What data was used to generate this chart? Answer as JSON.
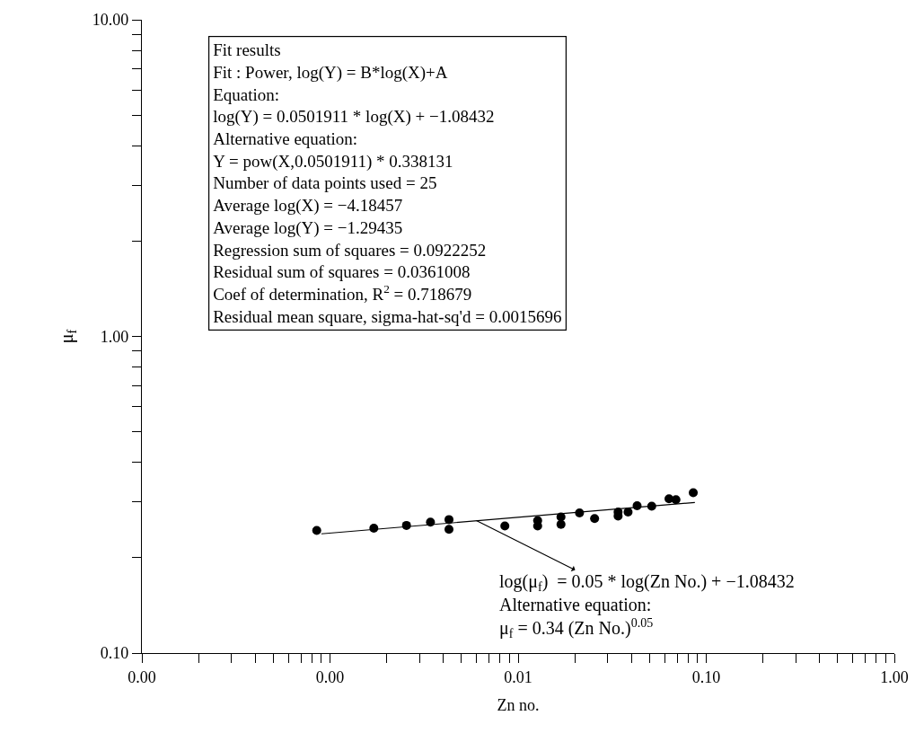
{
  "chart_data": {
    "type": "scatter",
    "xlabel": "Zn no.",
    "ylabel": "μ$_{f}$",
    "log": "xy",
    "xlim": [
      0.0001,
      1
    ],
    "ylim": [
      0.1,
      10
    ],
    "xticks": [
      {
        "value": 0.0001,
        "label": "0.00"
      },
      {
        "value": 0.0002,
        "label": null
      },
      {
        "value": 0.0003,
        "label": null
      },
      {
        "value": 0.0004,
        "label": null
      },
      {
        "value": 0.0005,
        "label": null
      },
      {
        "value": 0.0006,
        "label": null
      },
      {
        "value": 0.0007,
        "label": null
      },
      {
        "value": 0.0008,
        "label": null
      },
      {
        "value": 0.0009,
        "label": null
      },
      {
        "value": 0.001,
        "label": "0.00"
      },
      {
        "value": 0.002,
        "label": null
      },
      {
        "value": 0.003,
        "label": null
      },
      {
        "value": 0.004,
        "label": null
      },
      {
        "value": 0.005,
        "label": null
      },
      {
        "value": 0.006,
        "label": null
      },
      {
        "value": 0.007,
        "label": null
      },
      {
        "value": 0.008,
        "label": null
      },
      {
        "value": 0.009,
        "label": null
      },
      {
        "value": 0.01,
        "label": "0.01"
      },
      {
        "value": 0.02,
        "label": null
      },
      {
        "value": 0.03,
        "label": null
      },
      {
        "value": 0.04,
        "label": null
      },
      {
        "value": 0.05,
        "label": null
      },
      {
        "value": 0.06,
        "label": null
      },
      {
        "value": 0.07,
        "label": null
      },
      {
        "value": 0.08,
        "label": null
      },
      {
        "value": 0.09,
        "label": null
      },
      {
        "value": 0.1,
        "label": "0.10"
      },
      {
        "value": 0.2,
        "label": null
      },
      {
        "value": 0.3,
        "label": null
      },
      {
        "value": 0.4,
        "label": null
      },
      {
        "value": 0.5,
        "label": null
      },
      {
        "value": 0.6,
        "label": null
      },
      {
        "value": 0.7,
        "label": null
      },
      {
        "value": 0.8,
        "label": null
      },
      {
        "value": 0.9,
        "label": null
      },
      {
        "value": 1,
        "label": "1.00"
      }
    ],
    "yticks": [
      {
        "value": 0.1,
        "label": "0.10"
      },
      {
        "value": 0.2,
        "label": null
      },
      {
        "value": 0.3,
        "label": null
      },
      {
        "value": 0.4,
        "label": null
      },
      {
        "value": 0.5,
        "label": null
      },
      {
        "value": 0.6,
        "label": null
      },
      {
        "value": 0.7,
        "label": null
      },
      {
        "value": 0.8,
        "label": null
      },
      {
        "value": 0.9,
        "label": null
      },
      {
        "value": 1,
        "label": "1.00"
      },
      {
        "value": 2,
        "label": null
      },
      {
        "value": 3,
        "label": null
      },
      {
        "value": 4,
        "label": null
      },
      {
        "value": 5,
        "label": null
      },
      {
        "value": 6,
        "label": null
      },
      {
        "value": 7,
        "label": null
      },
      {
        "value": 8,
        "label": null
      },
      {
        "value": 9,
        "label": null
      },
      {
        "value": 10,
        "label": "10.00"
      }
    ],
    "marker": "circle",
    "series": [
      {
        "color": "#000000",
        "x": [
          0.00085,
          0.00171,
          0.00255,
          0.00342,
          0.00429,
          0.00429,
          0.0085,
          0.0127,
          0.0127,
          0.0169,
          0.0169,
          0.0212,
          0.0255,
          0.034,
          0.034,
          0.0384,
          0.0429,
          0.0513,
          0.0634,
          0.069,
          0.0853
        ],
        "values": [
          0.244,
          0.248,
          0.253,
          0.259,
          0.264,
          0.246,
          0.252,
          0.262,
          0.252,
          0.269,
          0.255,
          0.277,
          0.266,
          0.279,
          0.271,
          0.279,
          0.292,
          0.291,
          0.307,
          0.305,
          0.321
        ]
      },
      {
        "type": "line",
        "color": "#000000",
        "marker": "none",
        "x": [
          0.0009,
          0.087
        ],
        "values": [
          0.238,
          0.299
        ]
      }
    ],
    "annotations": [
      "Fit results\nFit : Power, log(Y) = B*log(X)+A\nEquation:\nlog(Y) = 0.0501911 * log(X) + −1.08432\nAlternative equation:\nY = pow(X,0.0501911) * 0.338131\nNumber of data points used = 25\nAverage log(X) = −4.18457\nAverage log(Y) = −1.29435\nRegression sum of squares = 0.0922252\nResidual sum of squares = 0.0361008\nCoef of determination, R$^{2}$ = 0.718679\nResidual mean square, sigma-hat-sq'd = 0.0015696",
      {
        "text": "log(μ$_{f}$)  = 0.05 * log(Zn No.) + −1.08432\nAlternative equation:\nμ$_{f}$ = 0.34 (Zn No.)$^{0.05}$",
        "x": 0.006,
        "y": 0.262
      }
    ]
  }
}
